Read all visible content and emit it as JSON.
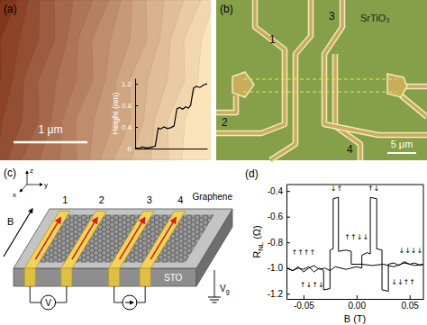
{
  "figure": {
    "panel_labels": [
      "(a)",
      "(b)",
      "(c)",
      "(d)"
    ],
    "a": {
      "scale_bar": "1 μm"
    },
    "b": {
      "electrodes": [
        "1",
        "2",
        "3",
        "4"
      ],
      "substrate": "SrTiO₃",
      "scale_bar": "5 μm"
    },
    "c": {
      "electrodes": [
        "1",
        "2",
        "3",
        "4"
      ],
      "field": "B",
      "material": "Graphene",
      "substrate": "STO",
      "voltmeter": "V",
      "gate": {
        "text": "V",
        "subscript": "g"
      },
      "axes": [
        "x",
        "y",
        "z"
      ]
    }
  },
  "chart_data": [
    {
      "type": "line",
      "ylabel": "Height (nm)",
      "x": [
        0,
        5,
        10,
        15,
        20,
        25,
        28,
        32,
        35,
        40,
        45,
        50,
        54,
        58,
        62,
        66,
        70,
        74,
        77,
        81,
        85,
        90,
        95,
        100
      ],
      "values": [
        0.02,
        0.0,
        0.03,
        0.01,
        0.02,
        0.03,
        0.05,
        0.38,
        0.36,
        0.4,
        0.37,
        0.39,
        0.42,
        0.74,
        0.76,
        0.73,
        0.77,
        0.75,
        0.8,
        1.12,
        1.15,
        1.13,
        1.18,
        1.2
      ],
      "color": "#000000",
      "line_style": "solid",
      "grid": false,
      "xlim": [
        0,
        100
      ],
      "ylim": [
        0,
        1.3
      ],
      "yticks": [
        0,
        0.4,
        0.8,
        1.2
      ],
      "tick_labels": "y"
    },
    {
      "type": "line",
      "xlabel": "B (T)",
      "ylabel": [
        "R",
        "NL",
        " (Ω)"
      ],
      "xlim": [
        -0.066,
        0.063
      ],
      "ylim": [
        -1.24,
        -0.35
      ],
      "xticks": [
        -0.05,
        {
          "value": 0,
          "label": "0.00"
        },
        0.05
      ],
      "yticks": [
        -1.2,
        {
          "value": -1,
          "label": "-1.0"
        },
        -0.8,
        -0.6,
        -0.4
      ],
      "grid": false,
      "line_style": "solid",
      "series": [
        {
          "color": "#000000",
          "x": [
            -0.066,
            -0.06,
            -0.055,
            -0.05,
            -0.045,
            -0.04,
            -0.035,
            -0.03,
            -0.025,
            -0.02,
            -0.015,
            -0.01,
            -0.005,
            0.0,
            0.005,
            0.005,
            0.01,
            0.013,
            0.013,
            0.019,
            0.019,
            0.024,
            0.024,
            0.03,
            0.03,
            0.035,
            0.04,
            0.045,
            0.05,
            0.055,
            0.06,
            0.063
          ],
          "values": [
            -1.0,
            -1.02,
            -0.99,
            -1.03,
            -1.0,
            -0.98,
            -1.01,
            -1.0,
            -1.02,
            -0.99,
            -1.0,
            -1.01,
            -1.0,
            -0.99,
            -1.0,
            -0.9,
            -0.88,
            -0.89,
            -0.45,
            -0.46,
            -0.85,
            -0.86,
            -1.17,
            -1.18,
            -0.97,
            -0.96,
            -0.98,
            -0.95,
            -0.97,
            -0.96,
            -0.98,
            -0.97
          ]
        },
        {
          "color": "#000000",
          "x": [
            0.063,
            0.055,
            0.045,
            0.035,
            0.025,
            0.015,
            0.005,
            -0.005,
            -0.005,
            -0.01,
            -0.017,
            -0.017,
            -0.022,
            -0.022,
            -0.025,
            -0.025,
            -0.031,
            -0.031,
            -0.035,
            -0.04,
            -0.045,
            -0.05,
            -0.055,
            -0.06,
            -0.066
          ],
          "values": [
            -0.97,
            -0.98,
            -0.96,
            -0.99,
            -0.97,
            -0.98,
            -0.97,
            -0.97,
            -0.87,
            -0.86,
            -0.87,
            -0.45,
            -0.46,
            -0.85,
            -0.86,
            -1.16,
            -1.17,
            -1.02,
            -1.0,
            -1.03,
            -0.99,
            -1.01,
            -1.0,
            -1.02,
            -1.0
          ]
        }
      ],
      "annotations": [
        {
          "text": "↑↑↑↑",
          "x": -0.05,
          "y": -0.9
        },
        {
          "text": "↓↑",
          "x": -0.019,
          "y": -0.4
        },
        {
          "text": "↑↓↑↓",
          "x": -0.042,
          "y": -1.15
        },
        {
          "text": "↑↑↓↓",
          "x": 0.0,
          "y": -0.78
        },
        {
          "text": "↑↓",
          "x": 0.016,
          "y": -0.4
        },
        {
          "text": "↓↓↑↑",
          "x": 0.044,
          "y": -1.13
        },
        {
          "text": "↓↓↓↓",
          "x": 0.051,
          "y": -0.88
        }
      ]
    }
  ]
}
